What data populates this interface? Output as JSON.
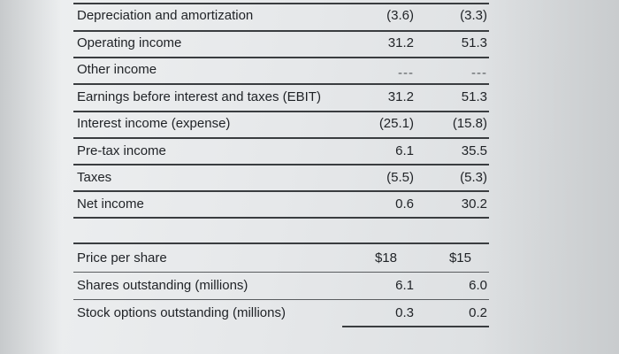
{
  "income_statement": [
    {
      "label": "Depreciation and amortization",
      "col1": "(3.6)",
      "col2": "(3.3)"
    },
    {
      "label": "Operating income",
      "col1": "31.2",
      "col2": "51.3"
    },
    {
      "label": "Other income",
      "col1": "---",
      "col2": "---"
    },
    {
      "label": "Earnings before interest and taxes (EBIT)",
      "col1": "31.2",
      "col2": "51.3"
    },
    {
      "label": "Interest income (expense)",
      "col1": "(25.1)",
      "col2": "(15.8)"
    },
    {
      "label": "Pre-tax income",
      "col1": "6.1",
      "col2": "35.5"
    },
    {
      "label": "Taxes",
      "col1": "(5.5)",
      "col2": "(5.3)"
    },
    {
      "label": "Net income",
      "col1": "0.6",
      "col2": "30.2"
    }
  ],
  "share_data": [
    {
      "label": "Price per share",
      "col1": "$18",
      "col2": "$15"
    },
    {
      "label": "Shares outstanding (millions)",
      "col1": "6.1",
      "col2": "6.0"
    },
    {
      "label": "Stock options outstanding (millions)",
      "col1": "0.3",
      "col2": "0.2"
    }
  ]
}
